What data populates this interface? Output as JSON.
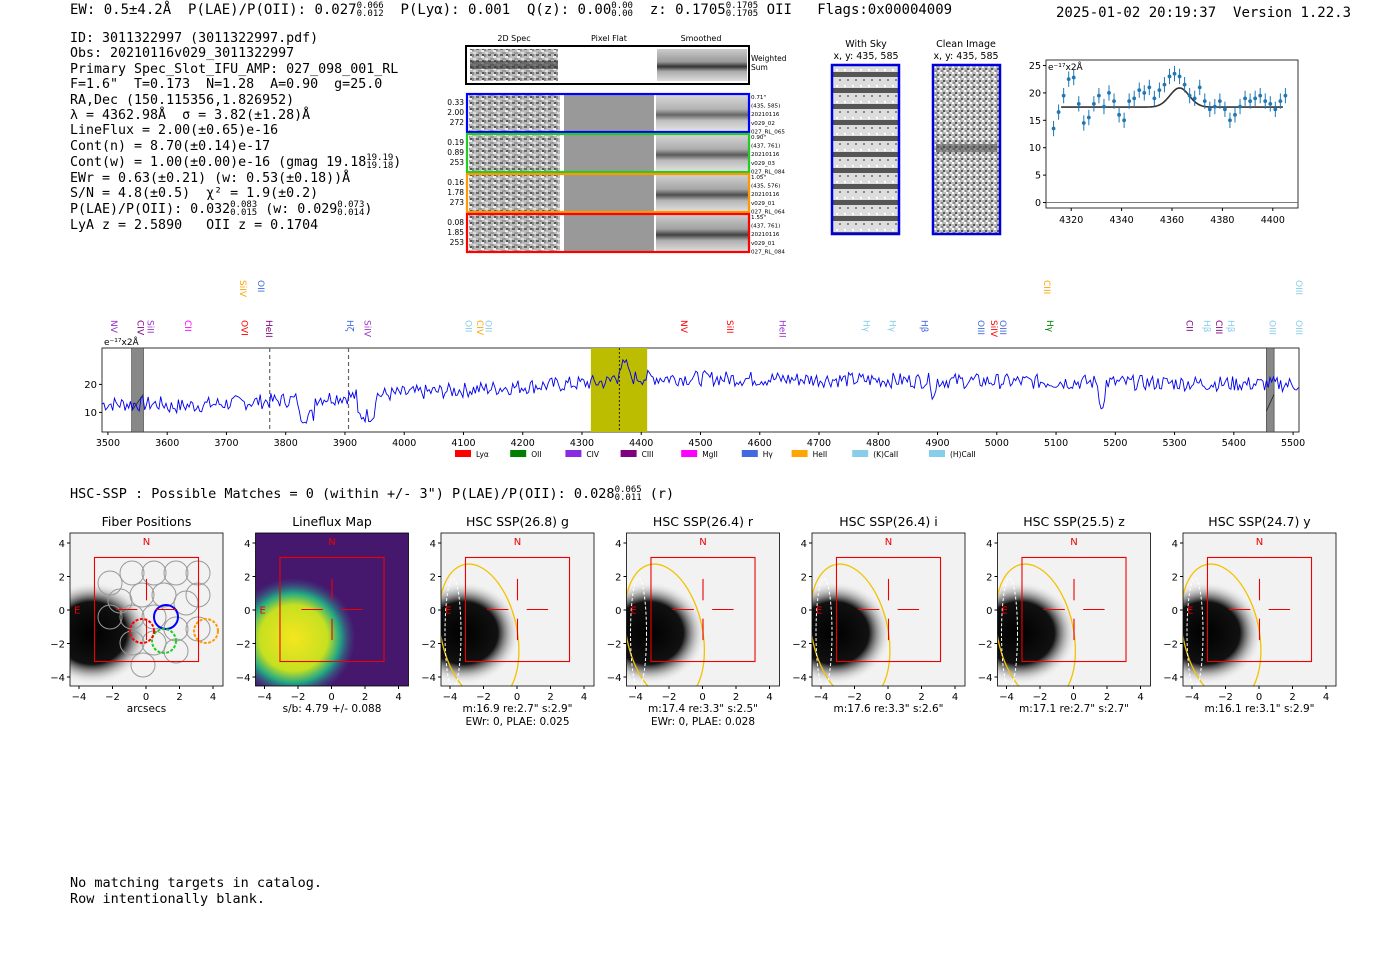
{
  "header": {
    "ew": "EW: 0.5±4.2Å",
    "plae_label": "P(LAE)/P(OII): 0.027",
    "plae_hi": "0.066",
    "plae_lo": "0.012",
    "plya": "P(Lyα): 0.001",
    "qz_label": "Q(z): 0.00",
    "qz_hi": "0.00",
    "qz_lo": "0.00",
    "z_label": "z: 0.1705",
    "z_hi": "0.1705",
    "z_lo": "0.1705",
    "z_line": "OII",
    "flags": "Flags:0x00004009",
    "datetime": "2025-01-02 20:19:37",
    "version": "Version 1.22.3"
  },
  "info": {
    "id": "ID: 3011322997 (3011322997.pdf)",
    "obs": "Obs: 20210116v029_3011322997",
    "primary": "Primary Spec_Slot_IFU_AMP: 027_098_001_RL",
    "params": "F=1.6\"  T=0.173  N=1.28  A=0.90  g=25.0",
    "radec": "RA,Dec (150.115356,1.826952)",
    "lambda": "λ = 4362.98Å  σ = 3.82(±1.28)Å",
    "lineflux": "LineFlux = 2.00(±0.65)e-16",
    "contn": "Cont(n) = 8.70(±0.14)e-17",
    "contw": "Cont(w) = 1.00(±0.00)e-16 (gmag 19.18",
    "contw_hi": "19.19",
    "contw_lo": "19.18",
    "ewr": "EWr = 0.63(±0.21) (w: 0.53(±0.18))Å",
    "sn": "S/N = 4.8(±0.5)  χ² = 1.9(±0.2)",
    "plae": "P(LAE)/P(OII): 0.032",
    "plae_hi": "0.083",
    "plae_lo": "0.015",
    "plae_w": "(w: 0.029",
    "plae_w_hi": "0.073",
    "plae_w_lo": "0.014",
    "zline": "LyA z = 2.5890   OII z = 0.1704"
  },
  "cutouts": {
    "headers": [
      "2D Spec",
      "Pixel Flat",
      "Smoothed"
    ],
    "weighted_label": [
      "Weighted",
      "Sum"
    ],
    "rows": [
      {
        "color": "#0000ff",
        "left": [
          "0.33",
          "2.00",
          "272"
        ],
        "right": [
          "0.71\"",
          "(435, 585)",
          "20210116",
          "v029_02",
          "027_RL_065"
        ]
      },
      {
        "color": "#22cc22",
        "left": [
          "0.19",
          "0.89",
          "253"
        ],
        "right": [
          "0.90\"",
          "(437, 761)",
          "20210116",
          "v029_03",
          "027_RL_084"
        ]
      },
      {
        "color": "#ff9900",
        "left": [
          "0.16",
          "1.78",
          "273"
        ],
        "right": [
          "1.05\"",
          "(435, 576)",
          "20210116",
          "v029_01",
          "027_RL_064"
        ]
      },
      {
        "color": "#ff0000",
        "left": [
          "0.08",
          "1.85",
          "253"
        ],
        "right": [
          "1.55\"",
          "(437, 761)",
          "20210116",
          "v029_01",
          "027_RL_084"
        ]
      }
    ],
    "with_sky_title": "With Sky",
    "with_sky_xy": "x, y: 435, 585",
    "clean_title": "Clean Image",
    "clean_xy": "x, y: 435, 585"
  },
  "chart_data": [
    {
      "type": "scatter",
      "name_printed": "",
      "ylabel": "e⁻¹⁷x2Å",
      "xlim": [
        4310,
        4410
      ],
      "ylim": [
        -1,
        26
      ],
      "xticks": [
        4320,
        4340,
        4360,
        4380,
        4400
      ],
      "yticks": [
        0,
        5,
        10,
        15,
        20,
        25
      ],
      "points_x": [
        4313,
        4315,
        4317,
        4319,
        4321,
        4323,
        4325,
        4327,
        4329,
        4331,
        4333,
        4335,
        4337,
        4339,
        4341,
        4343,
        4345,
        4347,
        4349,
        4351,
        4353,
        4355,
        4357,
        4359,
        4361,
        4363,
        4365,
        4367,
        4369,
        4371,
        4373,
        4375,
        4377,
        4379,
        4381,
        4383,
        4385,
        4387,
        4389,
        4391,
        4393,
        4395,
        4397,
        4399,
        4401,
        4403,
        4405
      ],
      "points_y": [
        13.5,
        16.5,
        19.5,
        22.5,
        22.8,
        18.0,
        14.5,
        15.5,
        18.0,
        19.5,
        17.5,
        20.0,
        18.5,
        16.0,
        15.0,
        18.5,
        19.0,
        20.5,
        20.0,
        21.0,
        19.0,
        20.5,
        21.5,
        23.0,
        23.5,
        23.0,
        21.5,
        19.5,
        19.0,
        21.0,
        18.5,
        17.0,
        17.5,
        18.5,
        17.0,
        15.0,
        16.0,
        17.5,
        19.0,
        18.5,
        19.0,
        19.5,
        18.5,
        18.0,
        17.0,
        18.5,
        19.5
      ],
      "fit": {
        "continuum": 17.4,
        "amplitude": 3.5,
        "center": 4362.98,
        "sigma": 3.82
      }
    },
    {
      "type": "line",
      "ylabel": "e⁻¹⁷x2Å",
      "xlim": [
        3490,
        5510
      ],
      "ylim": [
        3,
        33
      ],
      "xticks": [
        3500,
        3600,
        3700,
        3800,
        3900,
        4000,
        4100,
        4200,
        4300,
        4400,
        4500,
        4600,
        4700,
        4800,
        4900,
        5000,
        5100,
        5200,
        5300,
        5400,
        5500
      ],
      "yticks": [
        10,
        20
      ],
      "highlight_band": [
        4315,
        4410
      ],
      "line_center": 4363,
      "dashed_lines": [
        3773,
        3906
      ],
      "masked_regions": [
        [
          3540,
          3560
        ],
        [
          5455,
          5468
        ]
      ],
      "legend": [
        {
          "label": "Lyα",
          "color": "#ff0000"
        },
        {
          "label": "OII",
          "color": "#008000"
        },
        {
          "label": "CIV",
          "color": "#8a2be2"
        },
        {
          "label": "CIII",
          "color": "#800080"
        },
        {
          "label": "MgII",
          "color": "#ff00ff"
        },
        {
          "label": "Hγ",
          "color": "#4169e1"
        },
        {
          "label": "HeII",
          "color": "#ffa500"
        },
        {
          "label": "(K)CaII",
          "color": "#87ceeb"
        },
        {
          "label": "(H)CaII",
          "color": "#87ceeb"
        }
      ],
      "line_labels": [
        {
          "label": "NV",
          "x": 3500,
          "color": "#9932cc",
          "tier": 1
        },
        {
          "label": "CIV",
          "x": 3545,
          "color": "#800080",
          "tier": 1
        },
        {
          "label": "SiII",
          "x": 3562,
          "color": "#9932cc",
          "tier": 1
        },
        {
          "label": "CII",
          "x": 3625,
          "color": "#ff00ff",
          "tier": 1
        },
        {
          "label": "SiIV",
          "x": 3718,
          "color": "#ffa500",
          "tier": 0
        },
        {
          "label": "OII",
          "x": 3748,
          "color": "#4169e1",
          "tier": 0
        },
        {
          "label": "OVI",
          "x": 3720,
          "color": "#ff0000",
          "tier": 1
        },
        {
          "label": "HeII",
          "x": 3762,
          "color": "#800080",
          "tier": 1
        },
        {
          "label": "Hζ",
          "x": 3898,
          "color": "#4169e1",
          "tier": 1
        },
        {
          "label": "SiIV",
          "x": 3928,
          "color": "#9932cc",
          "tier": 1
        },
        {
          "label": "OII",
          "x": 4098,
          "color": "#87ceeb",
          "tier": 1
        },
        {
          "label": "CIV",
          "x": 4118,
          "color": "#ffa500",
          "tier": 1
        },
        {
          "label": "OII",
          "x": 4132,
          "color": "#87ceeb",
          "tier": 1
        },
        {
          "label": "NV",
          "x": 4462,
          "color": "#ff0000",
          "tier": 1
        },
        {
          "label": "SiII",
          "x": 4540,
          "color": "#ff0000",
          "tier": 1
        },
        {
          "label": "HeII",
          "x": 4628,
          "color": "#9932cc",
          "tier": 1
        },
        {
          "label": "Hγ",
          "x": 4770,
          "color": "#87ceeb",
          "tier": 1
        },
        {
          "label": "Hγ",
          "x": 4814,
          "color": "#87ceeb",
          "tier": 1
        },
        {
          "label": "Hβ",
          "x": 4868,
          "color": "#4169e1",
          "tier": 1
        },
        {
          "label": "OIII",
          "x": 4963,
          "color": "#4169e1",
          "tier": 1
        },
        {
          "label": "SiIV",
          "x": 4985,
          "color": "#ff0000",
          "tier": 1
        },
        {
          "label": "OIII",
          "x": 5000,
          "color": "#4169e1",
          "tier": 1
        },
        {
          "label": "Hγ",
          "x": 5080,
          "color": "#008000",
          "tier": 1
        },
        {
          "label": "CIII",
          "x": 5075,
          "color": "#ffa500",
          "tier": 0
        },
        {
          "label": "CII",
          "x": 5315,
          "color": "#800080",
          "tier": 1
        },
        {
          "label": "Hβ",
          "x": 5345,
          "color": "#87ceeb",
          "tier": 1
        },
        {
          "label": "CIII",
          "x": 5365,
          "color": "#800080",
          "tier": 1
        },
        {
          "label": "Hβ",
          "x": 5385,
          "color": "#87ceeb",
          "tier": 1
        },
        {
          "label": "OIII",
          "x": 5455,
          "color": "#87ceeb",
          "tier": 1
        },
        {
          "label": "OIII",
          "x": 5500,
          "color": "#87ceeb",
          "tier": 1
        },
        {
          "label": "OIII",
          "x": 5500,
          "color": "#87ceeb",
          "tier": 0
        }
      ]
    }
  ],
  "hsc": {
    "summary": "HSC-SSP : Possible Matches = 0 (within +/- 3\")  P(LAE)/P(OII): 0.028",
    "summary_hi": "0.065",
    "summary_lo": "0.011",
    "summary_band": "(r)",
    "north": "N",
    "east": "E",
    "ticks": [
      "−4",
      "−2",
      "0",
      "2",
      "4"
    ],
    "panels": [
      {
        "title": "Fiber Positions",
        "xlabel": "arcsecs",
        "line2": ""
      },
      {
        "title": "Lineflux Map",
        "xlabel": "s/b: 4.79 +/- 0.088",
        "line2": ""
      },
      {
        "title": "HSC SSP(26.8) g",
        "xlabel": "m:16.9  re:2.7\"  s:2.9\"",
        "line2": "EWr: 0, PLAE: 0.025"
      },
      {
        "title": "HSC SSP(26.4) r",
        "xlabel": "m:17.4  re:3.3\"  s:2.5\"",
        "line2": "EWr: 0, PLAE: 0.028"
      },
      {
        "title": "HSC SSP(26.4) i",
        "xlabel": "m:17.6  re:3.3\"  s:2.6\"",
        "line2": ""
      },
      {
        "title": "HSC SSP(25.5) z",
        "xlabel": "m:17.1  re:2.7\"  s:2.7\"",
        "line2": ""
      },
      {
        "title": "HSC SSP(24.7) y",
        "xlabel": "m:16.1  re:3.1\"  s:2.9\"",
        "line2": ""
      }
    ]
  },
  "catalog": {
    "line1": "No matching targets in catalog.",
    "line2": "Row intentionally blank."
  }
}
